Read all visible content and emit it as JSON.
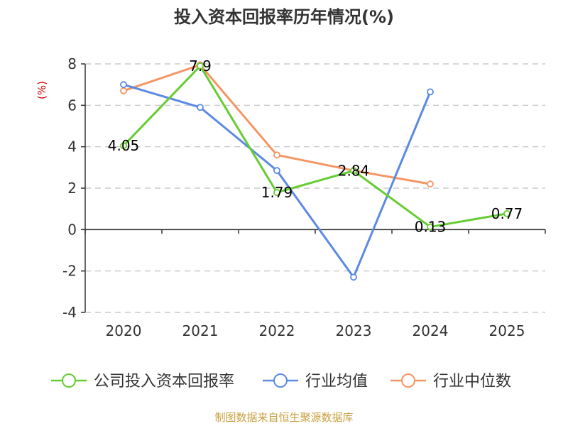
{
  "chart_data": {
    "type": "line",
    "title": "投入资本回报率历年情况(%)",
    "ylabel": "(%)",
    "xlabel": "",
    "categories": [
      "2020",
      "2021",
      "2022",
      "2023",
      "2024",
      "2025"
    ],
    "ylim": [
      -4,
      8
    ],
    "yticks": [
      -4,
      -2,
      0,
      2,
      4,
      6,
      8
    ],
    "grid": true,
    "legend": "bottom",
    "series": [
      {
        "name": "公司投入资本回报率",
        "color": "#66cc33",
        "values": [
          4.05,
          7.9,
          1.79,
          2.84,
          0.13,
          0.77
        ],
        "labels": [
          "4.05",
          "7.9",
          "1.79",
          "2.84",
          "0.13",
          "0.77"
        ]
      },
      {
        "name": "行业均值",
        "color": "#5b8ae0",
        "values": [
          7.0,
          5.9,
          2.85,
          -2.3,
          6.65,
          null
        ]
      },
      {
        "name": "行业中位数",
        "color": "#f59563",
        "values": [
          6.7,
          7.95,
          3.6,
          2.85,
          2.2,
          null
        ]
      }
    ]
  },
  "footer": {
    "source": "制图数据来自恒生聚源数据库"
  }
}
